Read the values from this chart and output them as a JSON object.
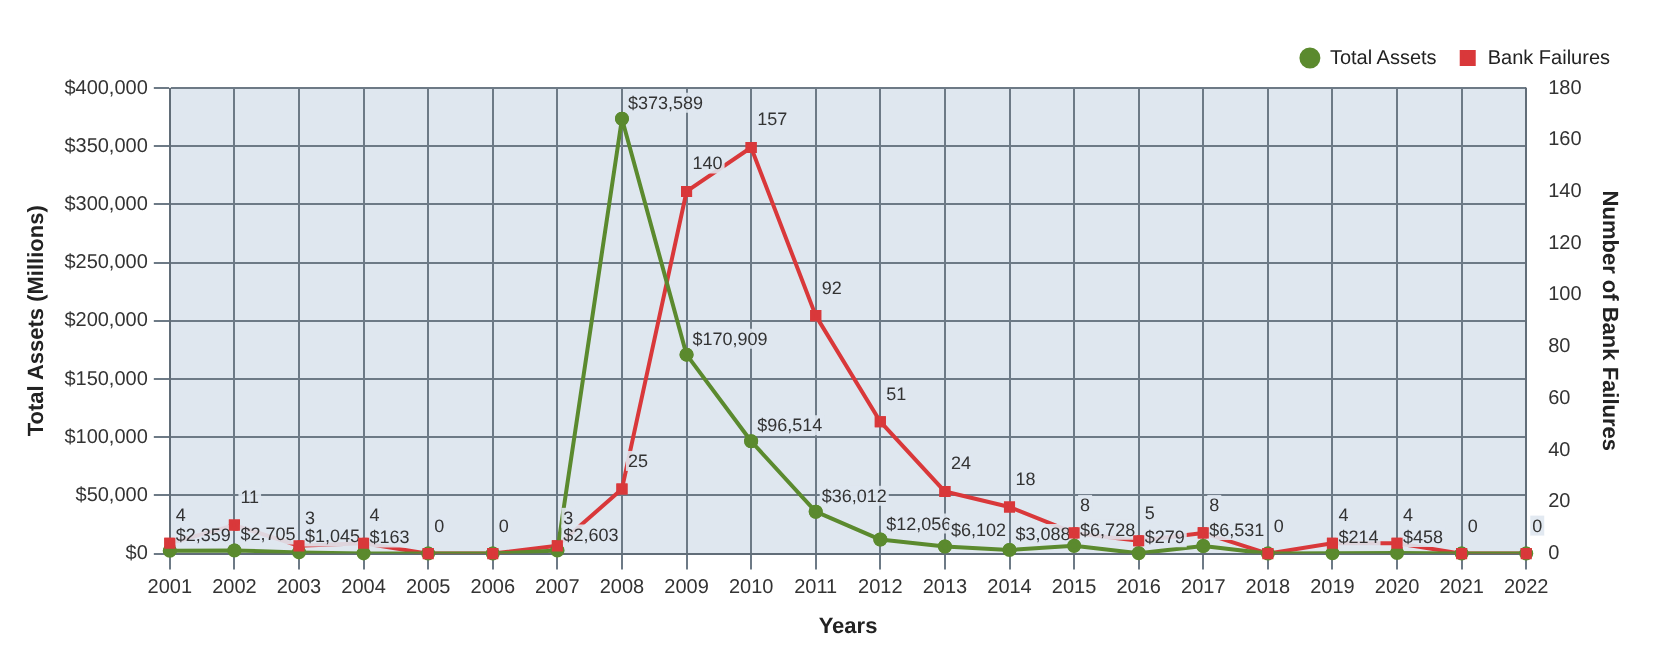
{
  "chart_data": {
    "type": "line",
    "xlabel": "Years",
    "ylabel": "Total Assets (Millions)",
    "y2label": "Number of Bank Failures",
    "categories": [
      "2001",
      "2002",
      "2003",
      "2004",
      "2005",
      "2006",
      "2007",
      "2008",
      "2009",
      "2010",
      "2011",
      "2012",
      "2013",
      "2014",
      "2015",
      "2016",
      "2017",
      "2018",
      "2019",
      "2020",
      "2021",
      "2022"
    ],
    "series": [
      {
        "name": "Total Assets",
        "color": "#5b8a2e",
        "marker": "circle",
        "values": [
          2359,
          2705,
          1045,
          163,
          0,
          0,
          2603,
          373589,
          170909,
          96514,
          36012,
          12056,
          6102,
          3088,
          6728,
          279,
          6531,
          0,
          214,
          458,
          0,
          0
        ],
        "value_labels": [
          "$2,359",
          "$2,705",
          "$1,045",
          "$163",
          null,
          null,
          "$2,603",
          "$373,589",
          "$170,909",
          "$96,514",
          "$36,012",
          "$12,056",
          "$6,102",
          "$3,088",
          "$6,728",
          "$279",
          "$6,531",
          null,
          "$214",
          "$458",
          null,
          null
        ]
      },
      {
        "name": "Bank Failures",
        "color": "#d9383a",
        "marker": "square",
        "axis": "y2",
        "values": [
          4,
          11,
          3,
          4,
          0,
          0,
          3,
          25,
          140,
          157,
          92,
          51,
          24,
          18,
          8,
          5,
          8,
          0,
          4,
          4,
          0,
          0
        ],
        "value_labels": [
          "4",
          "11",
          "3",
          "4",
          "0",
          "0",
          "3",
          "25",
          "140",
          "157",
          "92",
          "51",
          "24",
          "18",
          "8",
          "5",
          "8",
          "0",
          "4",
          "4",
          "0",
          "0"
        ]
      }
    ],
    "ylim": [
      0,
      400000
    ],
    "yticks": [
      {
        "value": 0,
        "label": "$0"
      },
      {
        "value": 50000,
        "label": "$50,000"
      },
      {
        "value": 100000,
        "label": "$100,000"
      },
      {
        "value": 150000,
        "label": "$150,000"
      },
      {
        "value": 200000,
        "label": "$200,000"
      },
      {
        "value": 250000,
        "label": "$250,000"
      },
      {
        "value": 300000,
        "label": "$300,000"
      },
      {
        "value": 350000,
        "label": "$350,000"
      },
      {
        "value": 400000,
        "label": "$400,000"
      }
    ],
    "y2lim": [
      0,
      180
    ],
    "y2ticks": [
      0,
      20,
      40,
      60,
      80,
      100,
      120,
      140,
      160,
      180
    ],
    "grid": true,
    "legend": "top right"
  }
}
